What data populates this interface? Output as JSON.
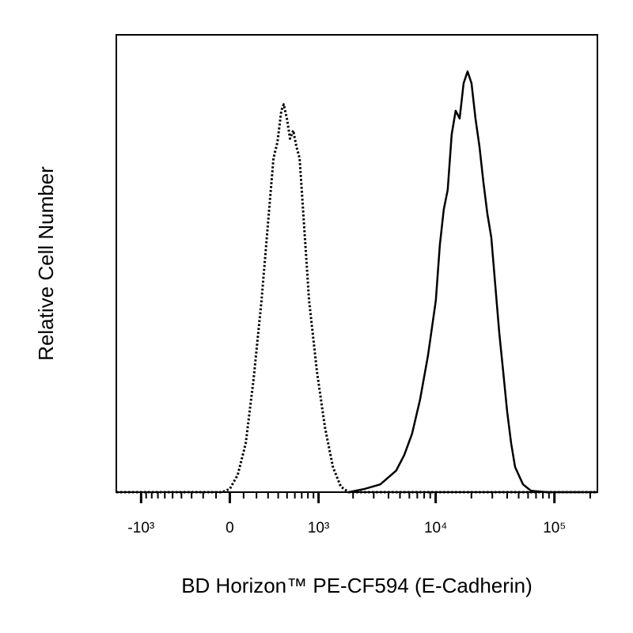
{
  "chart_data": {
    "type": "line",
    "xlabel": "BD Horizon™ PE-CF594 (E-Cadherin)",
    "ylabel": "Relative Cell Number",
    "xscale": "biexponential",
    "xlim": [
      -1650,
      230000
    ],
    "xticks": [
      {
        "value": -1000,
        "label": "-10³"
      },
      0,
      {
        "value": 1000,
        "label": "10³"
      },
      {
        "value": 10000,
        "label": "10⁴"
      },
      {
        "value": 100000,
        "label": "10⁵"
      }
    ],
    "xminorticks": [
      -900,
      -800,
      -700,
      -600,
      -500,
      -400,
      -300,
      -200,
      -100,
      100,
      200,
      300,
      400,
      500,
      600,
      700,
      800,
      900,
      2000,
      3000,
      4000,
      5000,
      6000,
      7000,
      8000,
      9000,
      20000,
      30000,
      40000,
      50000,
      60000,
      70000,
      80000,
      90000,
      200000
    ],
    "ylim": [
      0,
      100
    ],
    "series": [
      {
        "color": "#000000",
        "dash": "dotted",
        "x": [
          -1650,
          -57,
          0,
          57,
          116,
          176,
          242,
          313,
          352,
          392,
          434,
          461,
          498,
          537,
          578,
          621,
          668,
          716,
          820,
          968,
          1140,
          1340,
          1570,
          1835,
          230000
        ],
        "values": [
          0,
          0,
          0.7,
          3.8,
          10.7,
          24.6,
          41.9,
          62.6,
          73,
          76.5,
          83.4,
          84.8,
          81.7,
          77.3,
          79.1,
          75.6,
          73,
          62.6,
          41.9,
          26.3,
          14.2,
          5.5,
          1.2,
          0,
          0
        ]
      },
      {
        "color": "#000000",
        "dash": "solid",
        "x": [
          1835,
          2505,
          3408,
          4643,
          5430,
          6327,
          7381,
          8606,
          10030,
          10840,
          11700,
          12630,
          13640,
          14740,
          15920,
          17190,
          18560,
          20040,
          21640,
          23370,
          25230,
          27240,
          29410,
          31760,
          34300,
          37060,
          40000,
          43200,
          46640,
          54390,
          63450,
          86200,
          230000
        ],
        "values": [
          0,
          0.7,
          1.7,
          4.7,
          8.1,
          12.8,
          20.2,
          29.8,
          41.9,
          54,
          61.8,
          66.1,
          78.2,
          83.4,
          81.7,
          89.4,
          92,
          89.4,
          81.7,
          75.6,
          67.8,
          60.9,
          55.7,
          45.3,
          34.9,
          26.3,
          17.6,
          10.7,
          5.5,
          1.7,
          0.3,
          0,
          0
        ]
      }
    ]
  }
}
